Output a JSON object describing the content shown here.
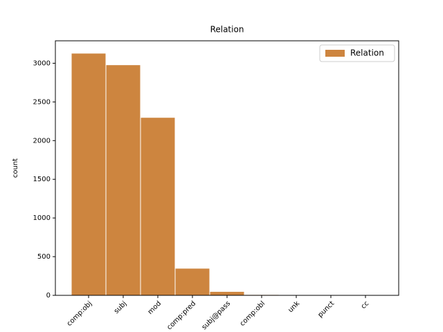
{
  "chart_data": {
    "type": "bar",
    "title": "Relation",
    "ylabel": "count",
    "categories": [
      "comp:obj",
      "subj",
      "mod",
      "comp:pred",
      "subj@pass",
      "comp:obl",
      "unk",
      "punct",
      "cc"
    ],
    "series": [
      {
        "name": "Relation",
        "color": "#cd853f",
        "values": [
          3130,
          2980,
          2300,
          350,
          50,
          10,
          2,
          1,
          1
        ]
      }
    ],
    "ylim": [
      0,
      3290
    ],
    "yticks": [
      0,
      500,
      1000,
      1500,
      2000,
      2500,
      3000
    ],
    "legend": "upper right"
  }
}
